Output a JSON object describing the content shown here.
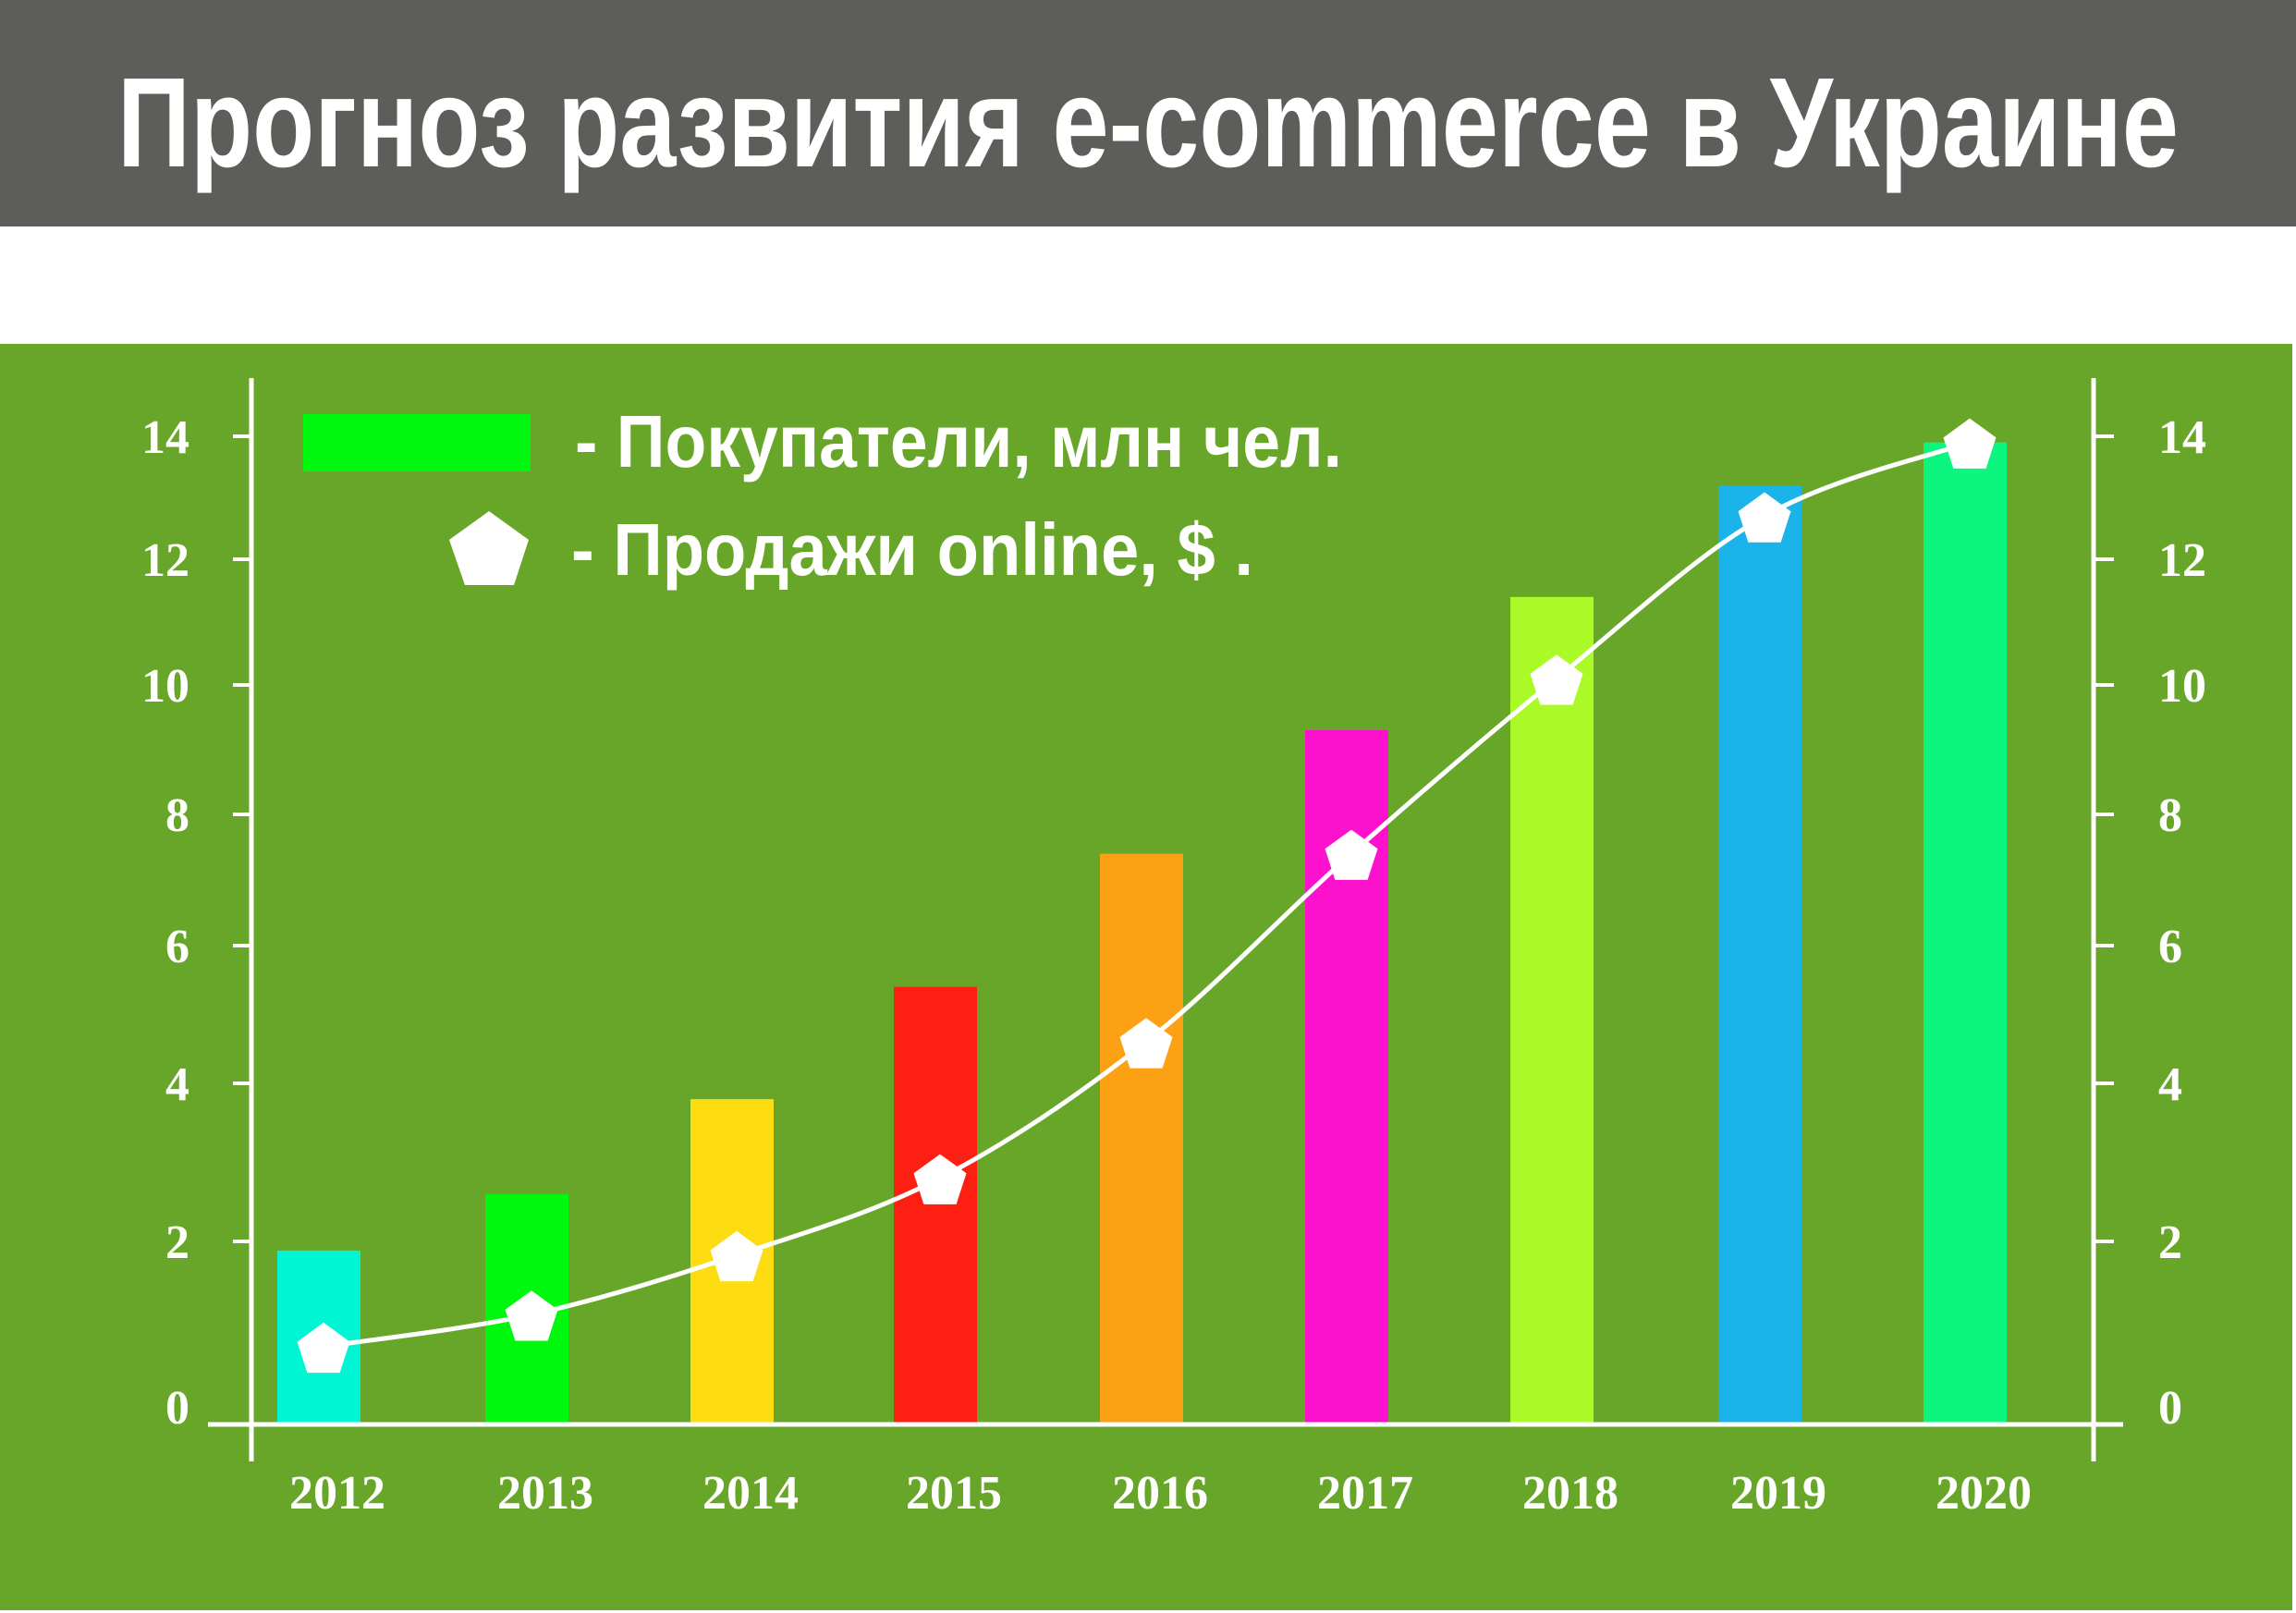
{
  "title": "Прогноз развития e-commerce в Украине",
  "colors": {
    "header_bg": "#5d5d5a",
    "panel_bg": "#67a628",
    "axis": "#ffffff",
    "line": "#ffffff"
  },
  "chart_data": {
    "type": "bar+line",
    "title": "Прогноз развития e-commerce в Украине",
    "categories": [
      "2012",
      "2013",
      "2014",
      "2015",
      "2016",
      "2017",
      "2018",
      "2019",
      "2020"
    ],
    "y_ticks": [
      "0",
      "2",
      "4",
      "6",
      "8",
      "10",
      "12",
      "14"
    ],
    "ylim": [
      0,
      14
    ],
    "legend_placement": "top-left",
    "grid": false,
    "series": [
      {
        "name": "- Покупатели, млн чел.",
        "type": "bar",
        "legend_color": "#00f80e",
        "values": [
          1.9,
          2.6,
          3.8,
          5.4,
          7.4,
          9.3,
          11.4,
          13.2,
          13.9
        ],
        "colors": [
          "#00f5d4",
          "#00f80e",
          "#fddc12",
          "#fc1f12",
          "#fba113",
          "#fc12cc",
          "#aafa28",
          "#1bb4ea",
          "#0cf57f"
        ]
      },
      {
        "name": "- Продажи online, $ .",
        "type": "line",
        "marker": "pentagon",
        "values": [
          0.85,
          1.2,
          1.85,
          2.8,
          4.6,
          7.4,
          10.1,
          12.7,
          13.9
        ]
      }
    ]
  }
}
